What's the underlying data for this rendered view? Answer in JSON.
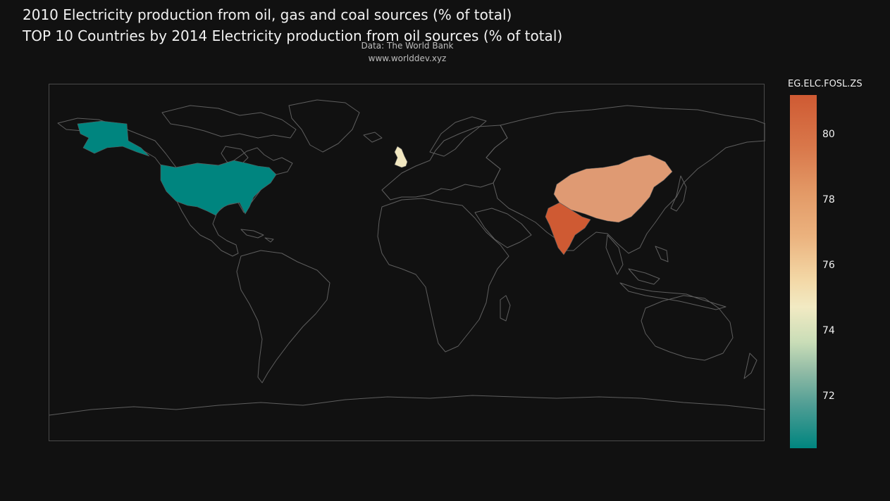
{
  "title": {
    "line1": "2010 Electricity production from oil, gas and coal sources (% of total)",
    "line2": "TOP 10 Countries by 2014 Electricity production from oil sources (% of total)"
  },
  "source": {
    "line1": "Data: The World Bank",
    "line2": "www.worlddev.xyz"
  },
  "colorbar": {
    "title": "EG.ELC.FOSL.ZS",
    "min": 70.4,
    "max": 81.2,
    "ticks": [
      "80",
      "78",
      "76",
      "74",
      "72"
    ],
    "colors": {
      "low": "#00857f",
      "mid": "#f2eac3",
      "high": "#cf5a33"
    }
  },
  "map": {
    "projection": "equirectangular",
    "countries": [
      {
        "name": "United States",
        "value": 70.4
      },
      {
        "name": "United Kingdom",
        "value": 75.9
      },
      {
        "name": "China",
        "value": 78.8
      },
      {
        "name": "India",
        "value": 81.2
      }
    ]
  }
}
